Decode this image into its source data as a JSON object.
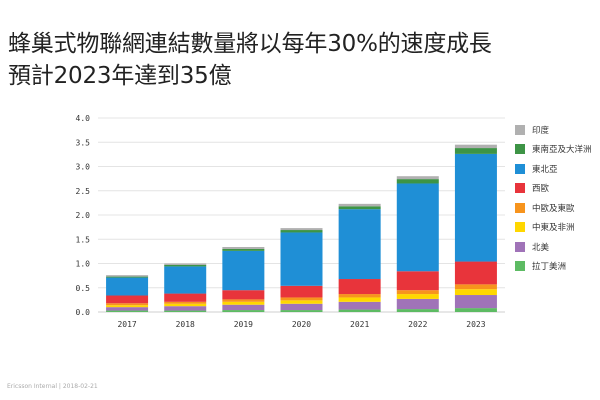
{
  "title": {
    "line1": "蜂巢式物聯網連結數量將以每年30%的速度成長",
    "line2": "預計2023年達到35億"
  },
  "footer": {
    "source": "Ericsson Internal",
    "separator": "|",
    "date": "2018-02-21"
  },
  "chart_data": {
    "type": "bar",
    "stacked": true,
    "grid": true,
    "legend_position": "right",
    "categories": [
      "2017",
      "2018",
      "2019",
      "2020",
      "2021",
      "2022",
      "2023"
    ],
    "ylim": [
      0,
      4.0
    ],
    "yticks": [
      "0.0",
      "0.5",
      "1.0",
      "1.5",
      "2.0",
      "2.5",
      "3.0",
      "3.5",
      "4.0"
    ],
    "series": [
      {
        "name": "拉丁美洲",
        "color": "#5dbb63",
        "values": [
          0.03,
          0.03,
          0.04,
          0.04,
          0.05,
          0.06,
          0.08
        ]
      },
      {
        "name": "北美",
        "color": "#a073b8",
        "values": [
          0.07,
          0.09,
          0.11,
          0.13,
          0.16,
          0.21,
          0.27
        ]
      },
      {
        "name": "中東及非洲",
        "color": "#ffd700",
        "values": [
          0.04,
          0.05,
          0.06,
          0.07,
          0.09,
          0.1,
          0.12
        ]
      },
      {
        "name": "中歐及東歐",
        "color": "#f7941d",
        "values": [
          0.04,
          0.04,
          0.05,
          0.06,
          0.07,
          0.08,
          0.1
        ]
      },
      {
        "name": "西歐",
        "color": "#e8343b",
        "values": [
          0.16,
          0.17,
          0.19,
          0.24,
          0.31,
          0.39,
          0.47
        ]
      },
      {
        "name": "東北亞",
        "color": "#1f8fd6",
        "values": [
          0.37,
          0.56,
          0.81,
          1.1,
          1.44,
          1.81,
          2.22
        ]
      },
      {
        "name": "東南亞及大洋洲",
        "color": "#3d9446",
        "values": [
          0.02,
          0.03,
          0.04,
          0.05,
          0.06,
          0.09,
          0.12
        ]
      },
      {
        "name": "印度",
        "color": "#b0b0b0",
        "values": [
          0.03,
          0.03,
          0.04,
          0.04,
          0.05,
          0.06,
          0.07
        ]
      }
    ]
  }
}
